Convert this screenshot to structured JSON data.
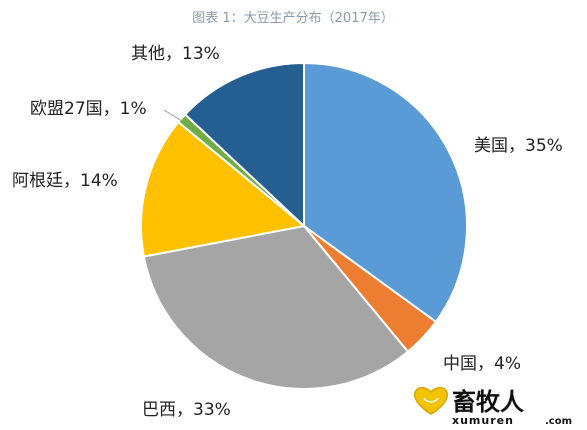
{
  "chart_data": {
    "type": "pie",
    "title": "图表 1：大豆生产分布（2017年）",
    "slices": [
      {
        "category": "美国",
        "value": 35,
        "label": "美国，35%",
        "color": "#5b9bd5"
      },
      {
        "category": "中国",
        "value": 4,
        "label": "中国，4%",
        "color": "#ed7d31"
      },
      {
        "category": "巴西",
        "value": 33,
        "label": "巴西，33%",
        "color": "#a5a5a5"
      },
      {
        "category": "阿根廷",
        "value": 14,
        "label": "阿根廷，14%",
        "color": "#ffc000"
      },
      {
        "category": "欧盟27国",
        "value": 1,
        "label": "欧盟27国，1%",
        "color": "#70ad47"
      },
      {
        "category": "其他",
        "value": 13,
        "label": "其他，13%",
        "color": "#255e91"
      }
    ]
  },
  "watermark": {
    "name": "畜牧人",
    "url": "xumuren",
    "suffix": ".com",
    "icon": "heart-logo-icon"
  }
}
